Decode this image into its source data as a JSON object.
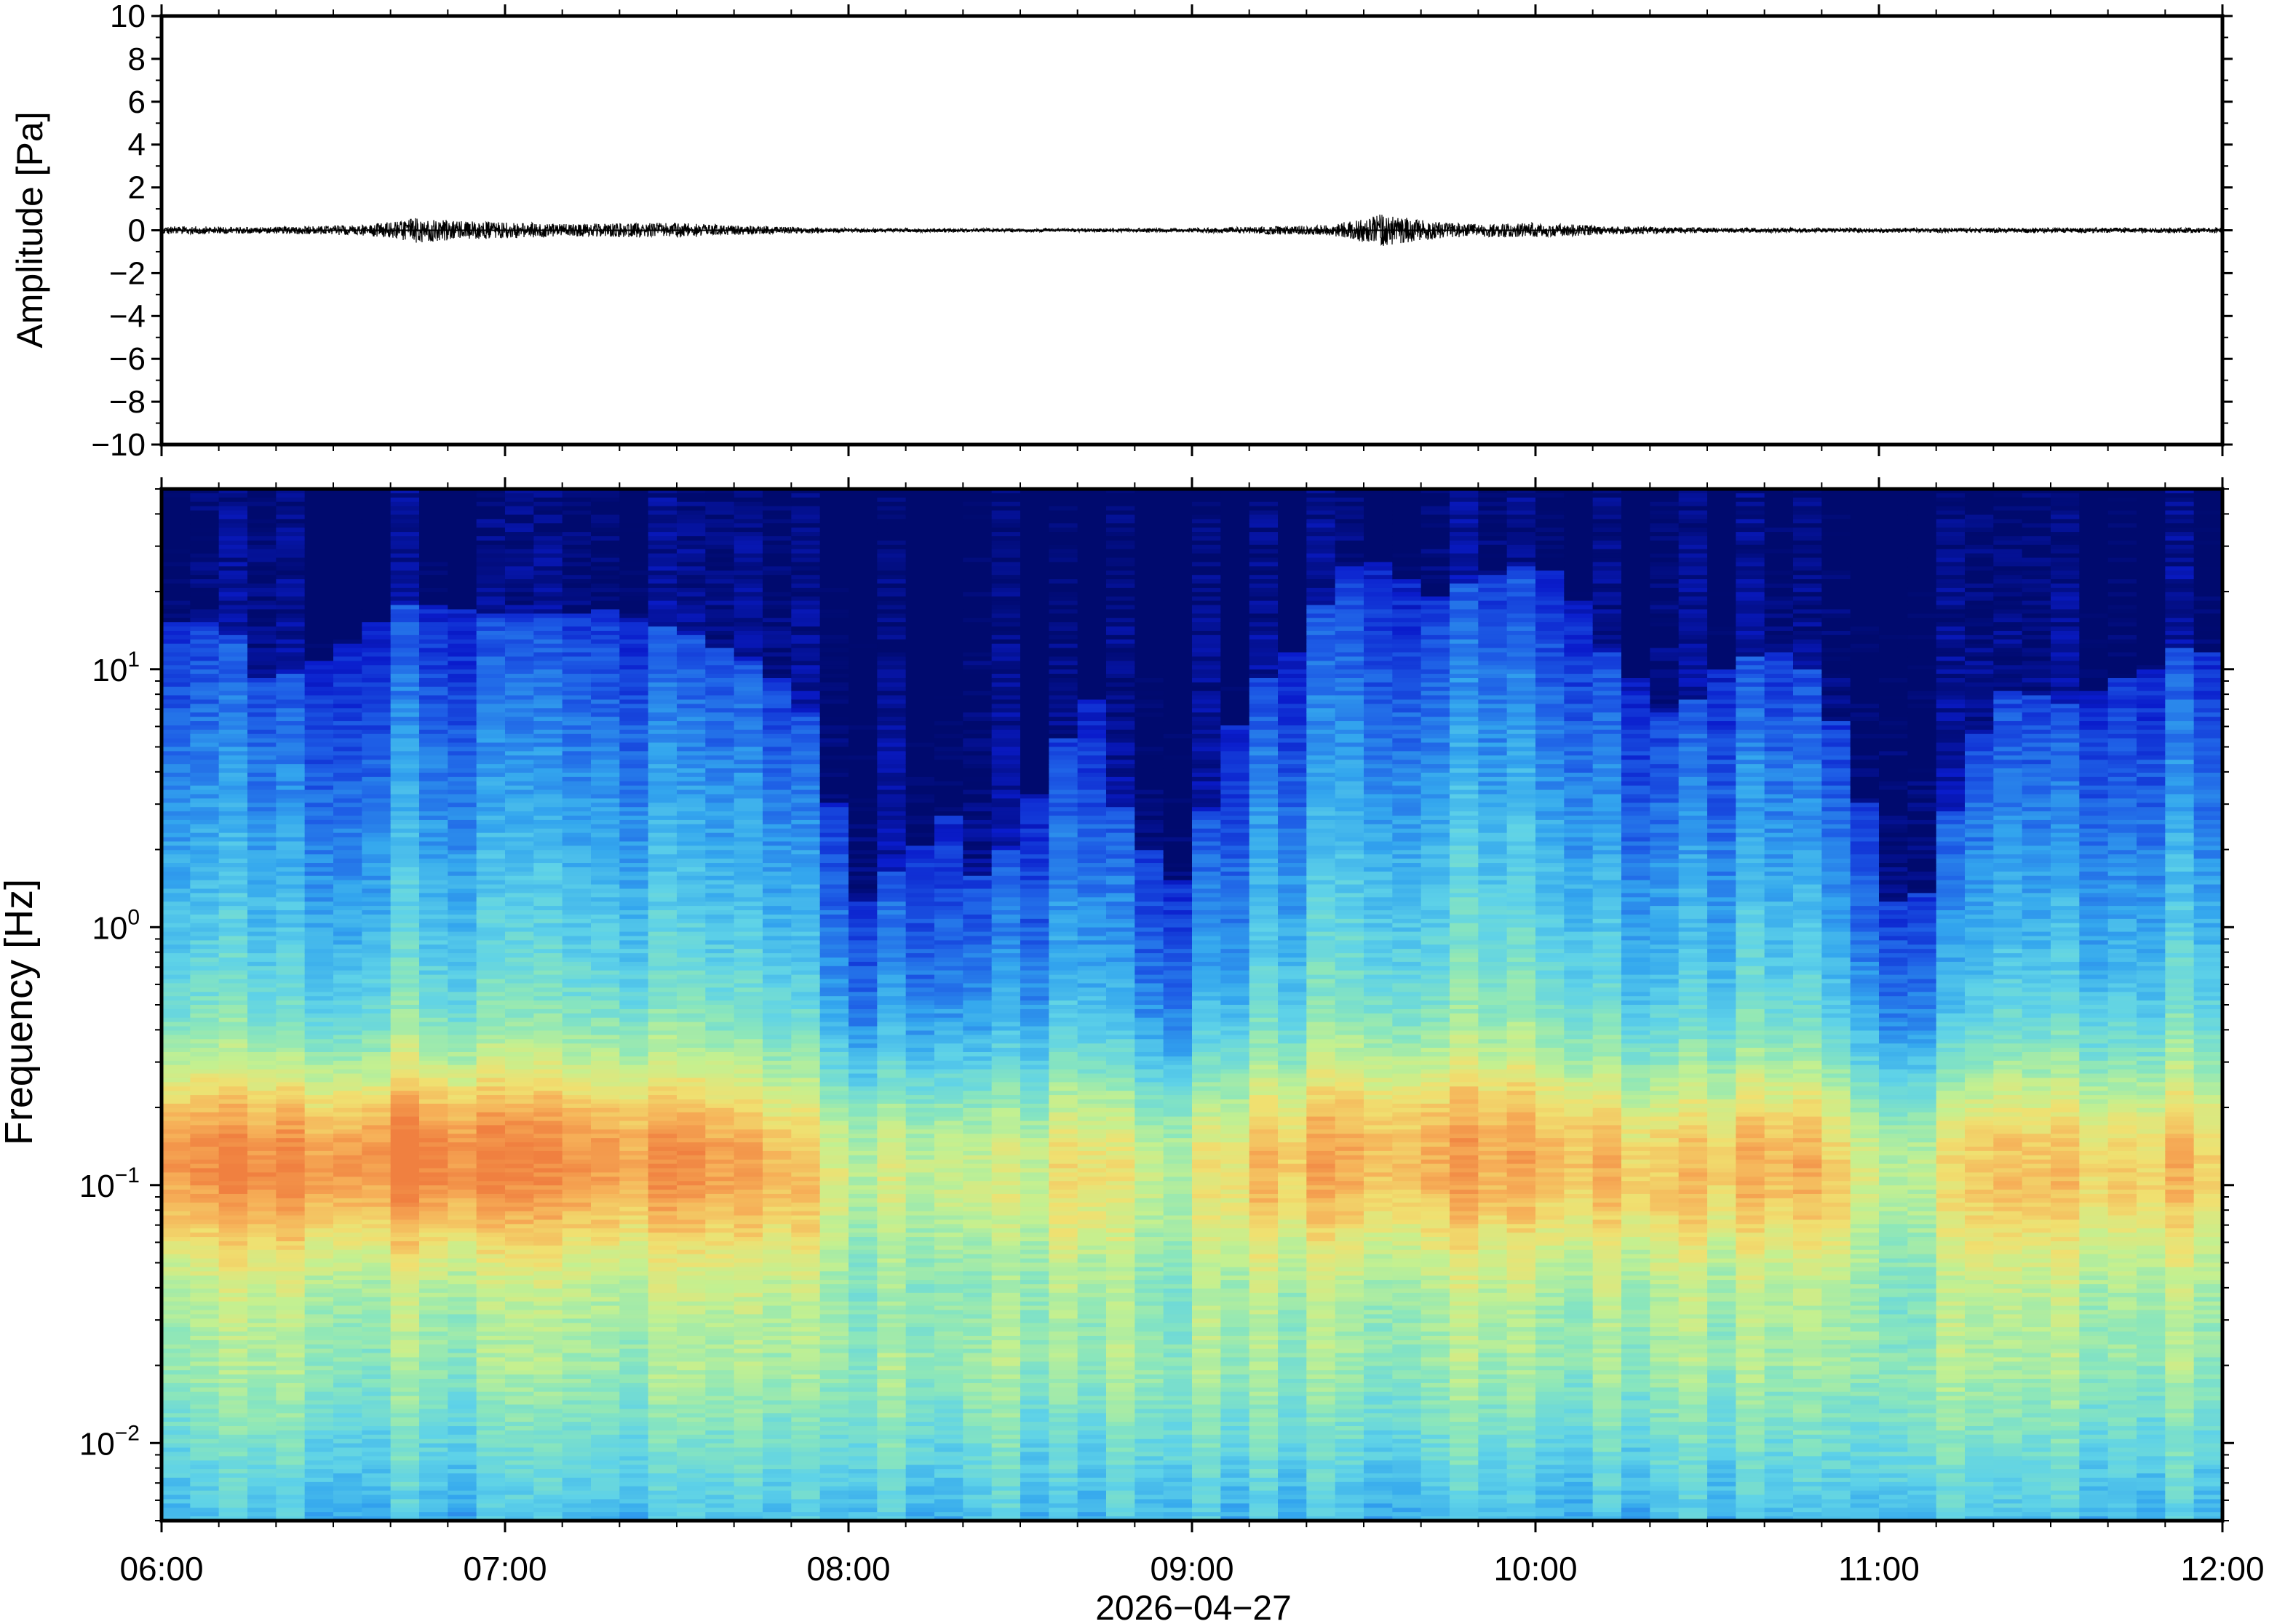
{
  "chart_data": [
    {
      "type": "line",
      "panel": "waveform",
      "ylabel": "Amplitude [Pa]",
      "ylim": [
        -10,
        10
      ],
      "yticks": [
        -10,
        -8,
        -6,
        -4,
        -2,
        0,
        2,
        4,
        6,
        8,
        10
      ],
      "ytick_labels": [
        "−10",
        "−8",
        "−6",
        "−4",
        "−2",
        "0",
        "2",
        "4",
        "6",
        "8",
        "10"
      ],
      "xlim_hours": [
        6,
        12
      ],
      "series_color": "#000000",
      "baseline": 0,
      "envelope": {
        "time_hours": [
          6.0,
          6.3,
          6.6,
          6.75,
          6.85,
          7.2,
          7.5,
          7.7,
          8.0,
          8.5,
          9.0,
          9.4,
          9.5,
          9.55,
          9.65,
          9.8,
          10.0,
          10.2,
          10.5,
          11.0,
          11.5,
          12.0
        ],
        "amplitude_pa": [
          0.2,
          0.15,
          0.25,
          0.6,
          0.45,
          0.3,
          0.35,
          0.2,
          0.1,
          0.08,
          0.1,
          0.25,
          0.55,
          0.8,
          0.5,
          0.3,
          0.35,
          0.2,
          0.12,
          0.1,
          0.12,
          0.12
        ]
      }
    },
    {
      "type": "heatmap",
      "panel": "spectrogram",
      "ylabel": "Frequency [Hz]",
      "yscale": "log",
      "ylim": [
        0.005,
        50
      ],
      "yticks": [
        0.01,
        0.1,
        1,
        10
      ],
      "ytick_labels": [
        {
          "base": "10",
          "exp": "−2"
        },
        {
          "base": "10",
          "exp": "−1"
        },
        {
          "base": "10",
          "exp": "0"
        },
        {
          "base": "10",
          "exp": "1"
        }
      ],
      "xlim_hours": [
        6,
        12
      ],
      "colormap": [
        "#000a6e",
        "#0a1ccc",
        "#1e5ee6",
        "#33a6ee",
        "#5ed2e8",
        "#8ae6bc",
        "#c4f090",
        "#f0e070",
        "#f6b058",
        "#f08040"
      ],
      "profile_description": "dark blue above cutoff, blue-cyan mid band, yellow-orange band near 0.1-0.3 Hz",
      "cutoff_frequency_hz": {
        "time_hours": [
          6.0,
          6.1,
          6.2,
          6.3,
          6.5,
          6.7,
          6.9,
          7.1,
          7.3,
          7.5,
          7.7,
          7.85,
          8.0,
          8.1,
          8.2,
          8.3,
          8.4,
          8.5,
          8.6,
          8.7,
          8.8,
          8.9,
          9.0,
          9.1,
          9.2,
          9.3,
          9.4,
          9.5,
          9.6,
          9.7,
          9.8,
          9.9,
          10.0,
          10.1,
          10.2,
          10.3,
          10.4,
          10.5,
          10.6,
          10.7,
          10.8,
          10.9,
          11.0,
          11.05,
          11.1,
          11.2,
          11.3,
          11.4,
          11.5,
          11.6,
          11.7,
          11.8,
          11.9,
          12.0
        ],
        "values": [
          15,
          16,
          14,
          9,
          11,
          18,
          17,
          16,
          17,
          14,
          11,
          8,
          1.1,
          1.5,
          2.0,
          2.8,
          1.2,
          2.5,
          4.5,
          8,
          2.5,
          1.8,
          1.3,
          5,
          9,
          12,
          20,
          28,
          24,
          19,
          22,
          24,
          26,
          21,
          12,
          9,
          6,
          9,
          11,
          12,
          10,
          5,
          1.6,
          1.2,
          1.0,
          2.5,
          6,
          9,
          7,
          8,
          9,
          10,
          13,
          11
        ]
      },
      "warm_band_intensity": {
        "time_hours": [
          6.0,
          6.3,
          6.6,
          6.8,
          7.0,
          7.3,
          7.6,
          7.8,
          8.0,
          8.5,
          9.0,
          9.3,
          9.5,
          9.8,
          10.0,
          10.3,
          10.6,
          10.8,
          11.0,
          11.3,
          11.6,
          12.0
        ],
        "values": [
          0.8,
          0.85,
          0.9,
          1.0,
          0.85,
          0.75,
          0.7,
          0.55,
          0.5,
          0.45,
          0.5,
          0.55,
          0.65,
          0.6,
          0.6,
          0.55,
          0.5,
          0.6,
          0.45,
          0.55,
          0.5,
          0.45
        ]
      }
    }
  ],
  "xaxis": {
    "tick_labels": [
      "06:00",
      "07:00",
      "08:00",
      "09:00",
      "10:00",
      "11:00",
      "12:00"
    ],
    "tick_hours": [
      6,
      7,
      8,
      9,
      10,
      11,
      12
    ],
    "date_label": "2026−04−27"
  }
}
